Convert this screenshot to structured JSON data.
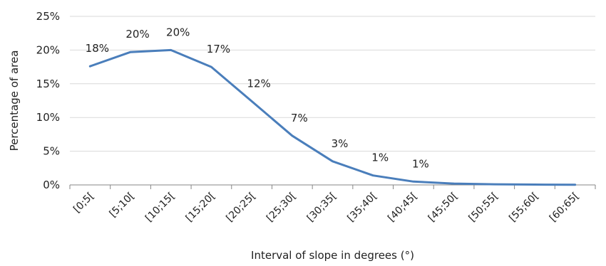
{
  "chart_data": {
    "type": "line",
    "title": "",
    "xlabel": "Interval of slope in degrees (°)",
    "ylabel": "Percentage of area",
    "categories": [
      "[0;5[",
      "[5;10[",
      "[10;15[",
      "[15;20[",
      "[20;25[",
      "[25;30[",
      "[30;35[",
      "[35;40[",
      "[40;45[",
      "[45;50[",
      "[50;55[",
      "[55;60[",
      "[60;65["
    ],
    "y_ticks": [
      "0%",
      "5%",
      "10%",
      "15%",
      "20%",
      "25%"
    ],
    "ylim": [
      0,
      25
    ],
    "grid": true,
    "series": [
      {
        "color": "#4a7ebb",
        "values": [
          17.6,
          19.7,
          20.0,
          17.5,
          12.4,
          7.3,
          3.5,
          1.4,
          0.5,
          0.2,
          0.1,
          0.05,
          0.02
        ]
      }
    ],
    "data_labels": [
      "18%",
      "20%",
      "20%",
      "17%",
      "12%",
      "7%",
      "3%",
      "1%",
      "1%"
    ]
  }
}
